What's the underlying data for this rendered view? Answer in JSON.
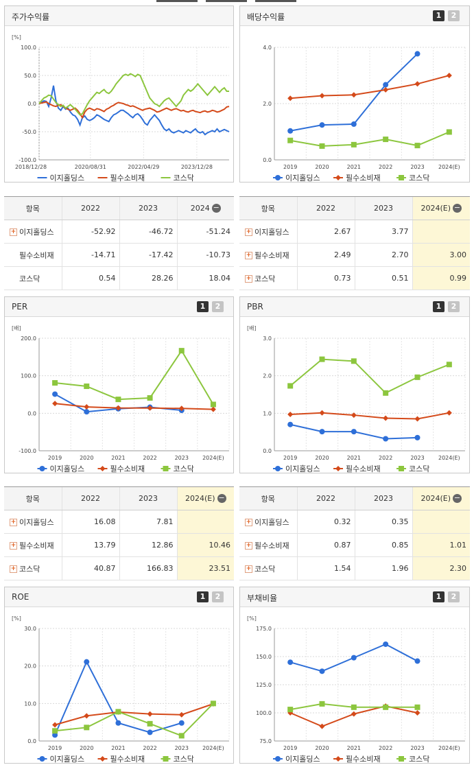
{
  "legend": {
    "s1": "이지홀딩스",
    "s2": "필수소비재",
    "s3": "코스닥"
  },
  "colors": {
    "s1": "#2e6fd8",
    "s2": "#d44a1a",
    "s3": "#8cc63e"
  },
  "buttons": {
    "b1": "1",
    "b2": "2"
  },
  "panels": {
    "price": {
      "title": "주가수익률"
    },
    "dividend": {
      "title": "배당수익률"
    },
    "per": {
      "title": "PER"
    },
    "pbr": {
      "title": "PBR"
    },
    "roe": {
      "title": "ROE"
    },
    "debt": {
      "title": "부채비율"
    }
  },
  "tables": {
    "price": {
      "headers": [
        "항목",
        "2022",
        "2023",
        "2024"
      ],
      "rows": [
        {
          "name": "이지홀딩스",
          "plus": true,
          "vals": [
            "-52.92",
            "-46.72",
            "-51.24"
          ]
        },
        {
          "name": "필수소비재",
          "plus": false,
          "vals": [
            "-14.71",
            "-17.42",
            "-10.73"
          ]
        },
        {
          "name": "코스닥",
          "plus": false,
          "vals": [
            "0.54",
            "28.26",
            "18.04"
          ]
        }
      ]
    },
    "dividend": {
      "headers": [
        "항목",
        "2022",
        "2023",
        "2024(E)"
      ],
      "rows": [
        {
          "name": "이지홀딩스",
          "plus": true,
          "vals": [
            "2.67",
            "3.77",
            ""
          ]
        },
        {
          "name": "필수소비재",
          "plus": true,
          "vals": [
            "2.49",
            "2.70",
            "3.00"
          ]
        },
        {
          "name": "코스닥",
          "plus": true,
          "vals": [
            "0.73",
            "0.51",
            "0.99"
          ]
        }
      ]
    },
    "per": {
      "headers": [
        "항목",
        "2022",
        "2023",
        "2024(E)"
      ],
      "rows": [
        {
          "name": "이지홀딩스",
          "plus": true,
          "vals": [
            "16.08",
            "7.81",
            ""
          ]
        },
        {
          "name": "필수소비재",
          "plus": true,
          "vals": [
            "13.79",
            "12.86",
            "10.46"
          ]
        },
        {
          "name": "코스닥",
          "plus": true,
          "vals": [
            "40.87",
            "166.83",
            "23.51"
          ]
        }
      ]
    },
    "pbr": {
      "headers": [
        "항목",
        "2022",
        "2023",
        "2024(E)"
      ],
      "rows": [
        {
          "name": "이지홀딩스",
          "plus": true,
          "vals": [
            "0.32",
            "0.35",
            ""
          ]
        },
        {
          "name": "필수소비재",
          "plus": true,
          "vals": [
            "0.87",
            "0.85",
            "1.01"
          ]
        },
        {
          "name": "코스닥",
          "plus": true,
          "vals": [
            "1.54",
            "1.96",
            "2.30"
          ]
        }
      ]
    }
  },
  "chart_data": [
    {
      "id": "price",
      "type": "line",
      "unit": "[%]",
      "ylim": [
        -100,
        100
      ],
      "yticks": [
        "100.0",
        "50.0",
        "0.0",
        "-50.0",
        "-100.0"
      ],
      "xticks": [
        "2018/12/28",
        "2020/08/31",
        "2022/04/29",
        "2023/12/28"
      ],
      "series": [
        {
          "name": "이지홀딩스",
          "values": [
            0,
            2,
            5,
            4,
            -5,
            10,
            32,
            5,
            -8,
            -12,
            -5,
            -10,
            -8,
            -15,
            -20,
            -22,
            -28,
            -38,
            -25,
            -22,
            -28,
            -30,
            -28,
            -25,
            -20,
            -22,
            -25,
            -28,
            -30,
            -32,
            -25,
            -20,
            -18,
            -15,
            -12,
            -12,
            -15,
            -18,
            -22,
            -25,
            -20,
            -18,
            -22,
            -28,
            -35,
            -38,
            -30,
            -25,
            -20,
            -25,
            -30,
            -38,
            -45,
            -48,
            -45,
            -50,
            -52,
            -50,
            -48,
            -50,
            -52,
            -48,
            -50,
            -52,
            -48,
            -45,
            -50,
            -52,
            -50,
            -55,
            -52,
            -50,
            -48,
            -50,
            -45,
            -50,
            -48,
            -46,
            -48,
            -50
          ]
        },
        {
          "name": "필수소비재",
          "values": [
            0,
            1,
            2,
            3,
            0,
            -2,
            -4,
            -5,
            -3,
            -2,
            -5,
            -8,
            -10,
            -12,
            -10,
            -8,
            -12,
            -18,
            -25,
            -15,
            -10,
            -8,
            -10,
            -12,
            -9,
            -10,
            -12,
            -14,
            -10,
            -8,
            -5,
            -3,
            0,
            2,
            1,
            0,
            -2,
            -3,
            -5,
            -4,
            -6,
            -8,
            -10,
            -12,
            -10,
            -9,
            -8,
            -10,
            -12,
            -15,
            -14,
            -12,
            -10,
            -8,
            -10,
            -12,
            -10,
            -9,
            -11,
            -13,
            -12,
            -14,
            -15,
            -13,
            -12,
            -14,
            -15,
            -16,
            -14,
            -13,
            -15,
            -14,
            -12,
            -13,
            -15,
            -14,
            -12,
            -10,
            -6,
            -5
          ]
        },
        {
          "name": "코스닥",
          "values": [
            0,
            5,
            10,
            12,
            15,
            14,
            8,
            2,
            -2,
            -5,
            -3,
            -8,
            -5,
            -2,
            -6,
            -10,
            -15,
            -20,
            -18,
            -10,
            -2,
            5,
            10,
            15,
            20,
            18,
            22,
            25,
            20,
            18,
            22,
            28,
            35,
            40,
            45,
            50,
            52,
            50,
            53,
            51,
            48,
            52,
            50,
            40,
            30,
            20,
            10,
            5,
            0,
            -2,
            -5,
            0,
            5,
            8,
            10,
            5,
            0,
            -5,
            0,
            5,
            15,
            20,
            25,
            22,
            25,
            30,
            35,
            30,
            25,
            20,
            15,
            20,
            25,
            30,
            25,
            20,
            25,
            28,
            22,
            22
          ]
        }
      ]
    },
    {
      "id": "dividend",
      "type": "line",
      "unit": "",
      "ylim": [
        0,
        4
      ],
      "yticks": [
        "4.0",
        "2.0",
        "0.0"
      ],
      "categories": [
        "2019",
        "2020",
        "2021",
        "2022",
        "2023",
        "2024(E)"
      ],
      "series": [
        {
          "name": "이지홀딩스",
          "values": [
            1.03,
            1.24,
            1.27,
            2.67,
            3.77,
            null
          ]
        },
        {
          "name": "필수소비재",
          "values": [
            2.19,
            2.28,
            2.31,
            2.49,
            2.7,
            3.0
          ]
        },
        {
          "name": "코스닥",
          "values": [
            0.69,
            0.49,
            0.54,
            0.73,
            0.51,
            0.99
          ]
        }
      ]
    },
    {
      "id": "per",
      "type": "line",
      "unit": "[배]",
      "ylim": [
        -100,
        200
      ],
      "yticks": [
        "200.0",
        "100.0",
        "0.0",
        "-100.0"
      ],
      "categories": [
        "2019",
        "2020",
        "2021",
        "2022",
        "2023",
        "2024(E)"
      ],
      "series": [
        {
          "name": "이지홀딩스",
          "values": [
            51,
            4,
            12,
            16.08,
            7.81,
            null
          ]
        },
        {
          "name": "필수소비재",
          "values": [
            26,
            17,
            14,
            13.79,
            12.86,
            10.46
          ]
        },
        {
          "name": "코스닥",
          "values": [
            81,
            72,
            37,
            40.87,
            166.83,
            23.51
          ]
        }
      ]
    },
    {
      "id": "pbr",
      "type": "line",
      "unit": "[배]",
      "ylim": [
        0,
        3
      ],
      "yticks": [
        "3.0",
        "2.0",
        "1.0",
        "0.0"
      ],
      "categories": [
        "2019",
        "2020",
        "2021",
        "2022",
        "2023",
        "2024(E)"
      ],
      "series": [
        {
          "name": "이지홀딩스",
          "values": [
            0.7,
            0.51,
            0.51,
            0.32,
            0.35,
            null
          ]
        },
        {
          "name": "필수소비재",
          "values": [
            0.97,
            1.01,
            0.95,
            0.87,
            0.85,
            1.01
          ]
        },
        {
          "name": "코스닥",
          "values": [
            1.73,
            2.44,
            2.39,
            1.54,
            1.96,
            2.3
          ]
        }
      ]
    },
    {
      "id": "roe",
      "type": "line",
      "unit": "[%]",
      "ylim": [
        0,
        30
      ],
      "yticks": [
        "30.0",
        "20.0",
        "10.0",
        "0.0"
      ],
      "categories": [
        "2019",
        "2020",
        "2021",
        "2022",
        "2023",
        "2024(E)"
      ],
      "series": [
        {
          "name": "이지홀딩스",
          "values": [
            1.6,
            21.1,
            4.8,
            2.3,
            4.8,
            null
          ]
        },
        {
          "name": "필수소비재",
          "values": [
            4.3,
            6.7,
            7.7,
            7.2,
            7.0,
            9.9
          ]
        },
        {
          "name": "코스닥",
          "values": [
            2.7,
            3.6,
            7.8,
            4.6,
            1.4,
            10.0
          ]
        }
      ]
    },
    {
      "id": "debt",
      "type": "line",
      "unit": "[%]",
      "ylim": [
        75,
        175
      ],
      "yticks": [
        "175.0",
        "150.0",
        "125.0",
        "100.0",
        "75.0"
      ],
      "categories": [
        "2019",
        "2020",
        "2021",
        "2022",
        "2023",
        "2024(E)"
      ],
      "series": [
        {
          "name": "이지홀딩스",
          "values": [
            145,
            137,
            149,
            161,
            146,
            null
          ]
        },
        {
          "name": "필수소비재",
          "values": [
            100,
            88,
            99,
            106,
            100,
            null
          ]
        },
        {
          "name": "코스닥",
          "values": [
            103,
            108,
            105,
            105,
            105,
            null
          ]
        }
      ]
    }
  ]
}
